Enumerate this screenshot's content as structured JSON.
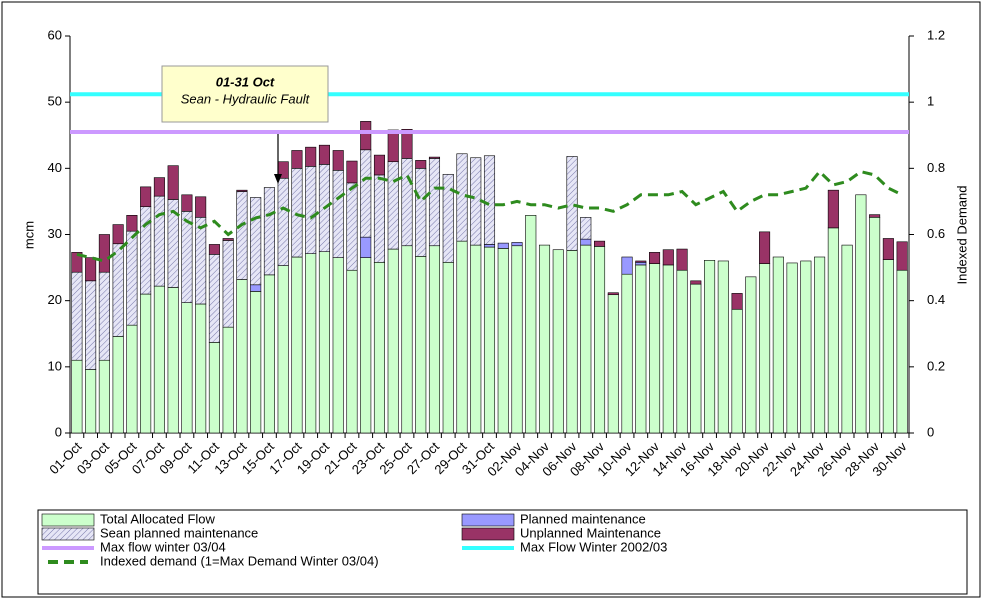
{
  "chart_data": {
    "type": "bar",
    "stacked": true,
    "y_label": "mcm",
    "y2_label": "Indexed Demand",
    "categories": [
      "01-Oct",
      null,
      "03-Oct",
      null,
      "05-Oct",
      null,
      "07-Oct",
      null,
      "09-Oct",
      null,
      "11-Oct",
      null,
      "13-Oct",
      null,
      "15-Oct",
      null,
      "17-Oct",
      null,
      "19-Oct",
      null,
      "21-Oct",
      null,
      "23-Oct",
      null,
      "25-Oct",
      null,
      "27-Oct",
      null,
      "29-Oct",
      null,
      "31-Oct",
      null,
      "02-Nov",
      null,
      "04-Nov",
      null,
      "06-Nov",
      null,
      "08-Nov",
      null,
      "10-Nov",
      null,
      "12-Nov",
      null,
      "14-Nov",
      null,
      "16-Nov",
      null,
      "18-Nov",
      null,
      "20-Nov",
      null,
      "22-Nov",
      null,
      "24-Nov",
      null,
      "26-Nov",
      null,
      "28-Nov",
      null,
      "30-Nov"
    ],
    "ylim": [
      0,
      60
    ],
    "yticks": [
      0,
      10,
      20,
      30,
      40,
      50,
      60
    ],
    "y2lim": [
      0,
      1.2
    ],
    "y2ticks": [
      0,
      0.2,
      0.4,
      0.6,
      0.8,
      1,
      1.2
    ],
    "series": [
      {
        "name": "Total Allocated Flow",
        "color": "#ccffcc",
        "values": [
          11,
          9.6,
          11,
          14.6,
          16.3,
          21,
          22.2,
          22,
          19.7,
          19.5,
          13.7,
          16,
          23.2,
          21.4,
          23.9,
          25.3,
          26.6,
          27.1,
          27.4,
          26.5,
          24.6,
          26.5,
          25.8,
          27.8,
          28.3,
          26.7,
          28.3,
          25.8,
          29,
          28.4,
          28.1,
          27.9,
          28.3,
          32.9,
          28.4,
          27.7,
          27.6,
          28.4,
          28.2,
          20.9,
          24,
          25.4,
          25.6,
          25.4,
          24.6,
          22.5,
          26.1,
          26,
          18.7,
          23.6,
          25.6,
          26.6,
          25.7,
          26,
          26.6,
          31,
          28.4,
          36,
          32.6,
          26.2,
          24.6
        ]
      },
      {
        "name": "Planned maintenance",
        "color": "#9999ff",
        "values": [
          0,
          0,
          0,
          0,
          0,
          0,
          0,
          0,
          0,
          0,
          0,
          0,
          0,
          1,
          0,
          0,
          0,
          0,
          0,
          0,
          0,
          3.1,
          0,
          0,
          0,
          0,
          0,
          0,
          0,
          0,
          0.4,
          0.8,
          0.5,
          0,
          0,
          0,
          0,
          0.9,
          0,
          0,
          2.6,
          0.4,
          0,
          0,
          0,
          0,
          0,
          0,
          0,
          0,
          0,
          0,
          0,
          0,
          0,
          0,
          0,
          0,
          0,
          0,
          0
        ]
      },
      {
        "name": "Sean planned maintenance",
        "color": "#e0e0f4",
        "pattern": "hatch",
        "values": [
          13.3,
          13.4,
          13.3,
          14,
          14.2,
          13.2,
          13.6,
          13.3,
          13.8,
          13.1,
          13.3,
          13.1,
          13.3,
          13.2,
          13.2,
          13.2,
          13.4,
          13.2,
          13.2,
          13.2,
          13.2,
          13.2,
          13.2,
          13.2,
          13.2,
          13.3,
          13.2,
          13.3,
          13.2,
          13.2,
          13.4,
          0,
          0,
          0,
          0,
          0,
          14.2,
          3.3,
          0,
          0,
          0,
          0,
          0,
          0,
          0,
          0,
          0,
          0,
          0,
          0,
          0,
          0,
          0,
          0,
          0,
          0,
          0,
          0,
          0,
          0,
          0
        ]
      },
      {
        "name": "Unplanned Maintenance",
        "color": "#993366",
        "values": [
          3,
          3.5,
          5.7,
          2.9,
          2.4,
          3,
          2.8,
          5.1,
          2.5,
          3.1,
          1.5,
          0.3,
          0.2,
          0,
          0,
          2.5,
          2.7,
          2.9,
          2.9,
          3,
          3.3,
          4.3,
          3,
          4.8,
          4.4,
          1.2,
          0.2,
          0,
          0,
          0,
          0,
          0,
          0,
          0,
          0,
          0,
          0,
          0,
          0.8,
          0.3,
          0,
          0.2,
          1.7,
          2.3,
          3.2,
          0.5,
          0,
          0,
          2.4,
          0,
          4.8,
          0,
          0,
          0,
          0,
          5.7,
          0,
          0,
          0.4,
          3.2,
          4.3
        ]
      }
    ],
    "reference_lines": [
      {
        "name": "Max flow winter 03/04",
        "color": "#cc99ff",
        "value": 45.5
      },
      {
        "name": "Max Flow Winter 2002/03",
        "color": "#33ffff",
        "value": 51.2
      }
    ],
    "line_series": [
      {
        "name": "Indexed demand (1=Max Demand Winter 03/04)",
        "color": "#2e8b1e",
        "axis": "y2",
        "dashed": true,
        "values": [
          0.54,
          0.53,
          0.52,
          0.55,
          0.59,
          0.63,
          0.66,
          0.67,
          0.64,
          0.62,
          0.64,
          0.6,
          0.63,
          0.65,
          0.66,
          0.68,
          0.66,
          0.65,
          0.68,
          0.71,
          0.74,
          0.77,
          0.77,
          0.76,
          0.78,
          0.7,
          0.74,
          0.74,
          0.72,
          0.71,
          0.69,
          0.69,
          0.7,
          0.69,
          0.69,
          0.68,
          0.69,
          0.68,
          0.68,
          0.67,
          0.69,
          0.72,
          0.72,
          0.72,
          0.73,
          0.69,
          0.71,
          0.73,
          0.67,
          0.7,
          0.72,
          0.72,
          0.73,
          0.74,
          0.79,
          0.75,
          0.76,
          0.79,
          0.78,
          0.74,
          0.72
        ]
      }
    ],
    "annotation": {
      "title": "01-31 Oct",
      "text": "Sean - Hydraulic Fault"
    }
  }
}
